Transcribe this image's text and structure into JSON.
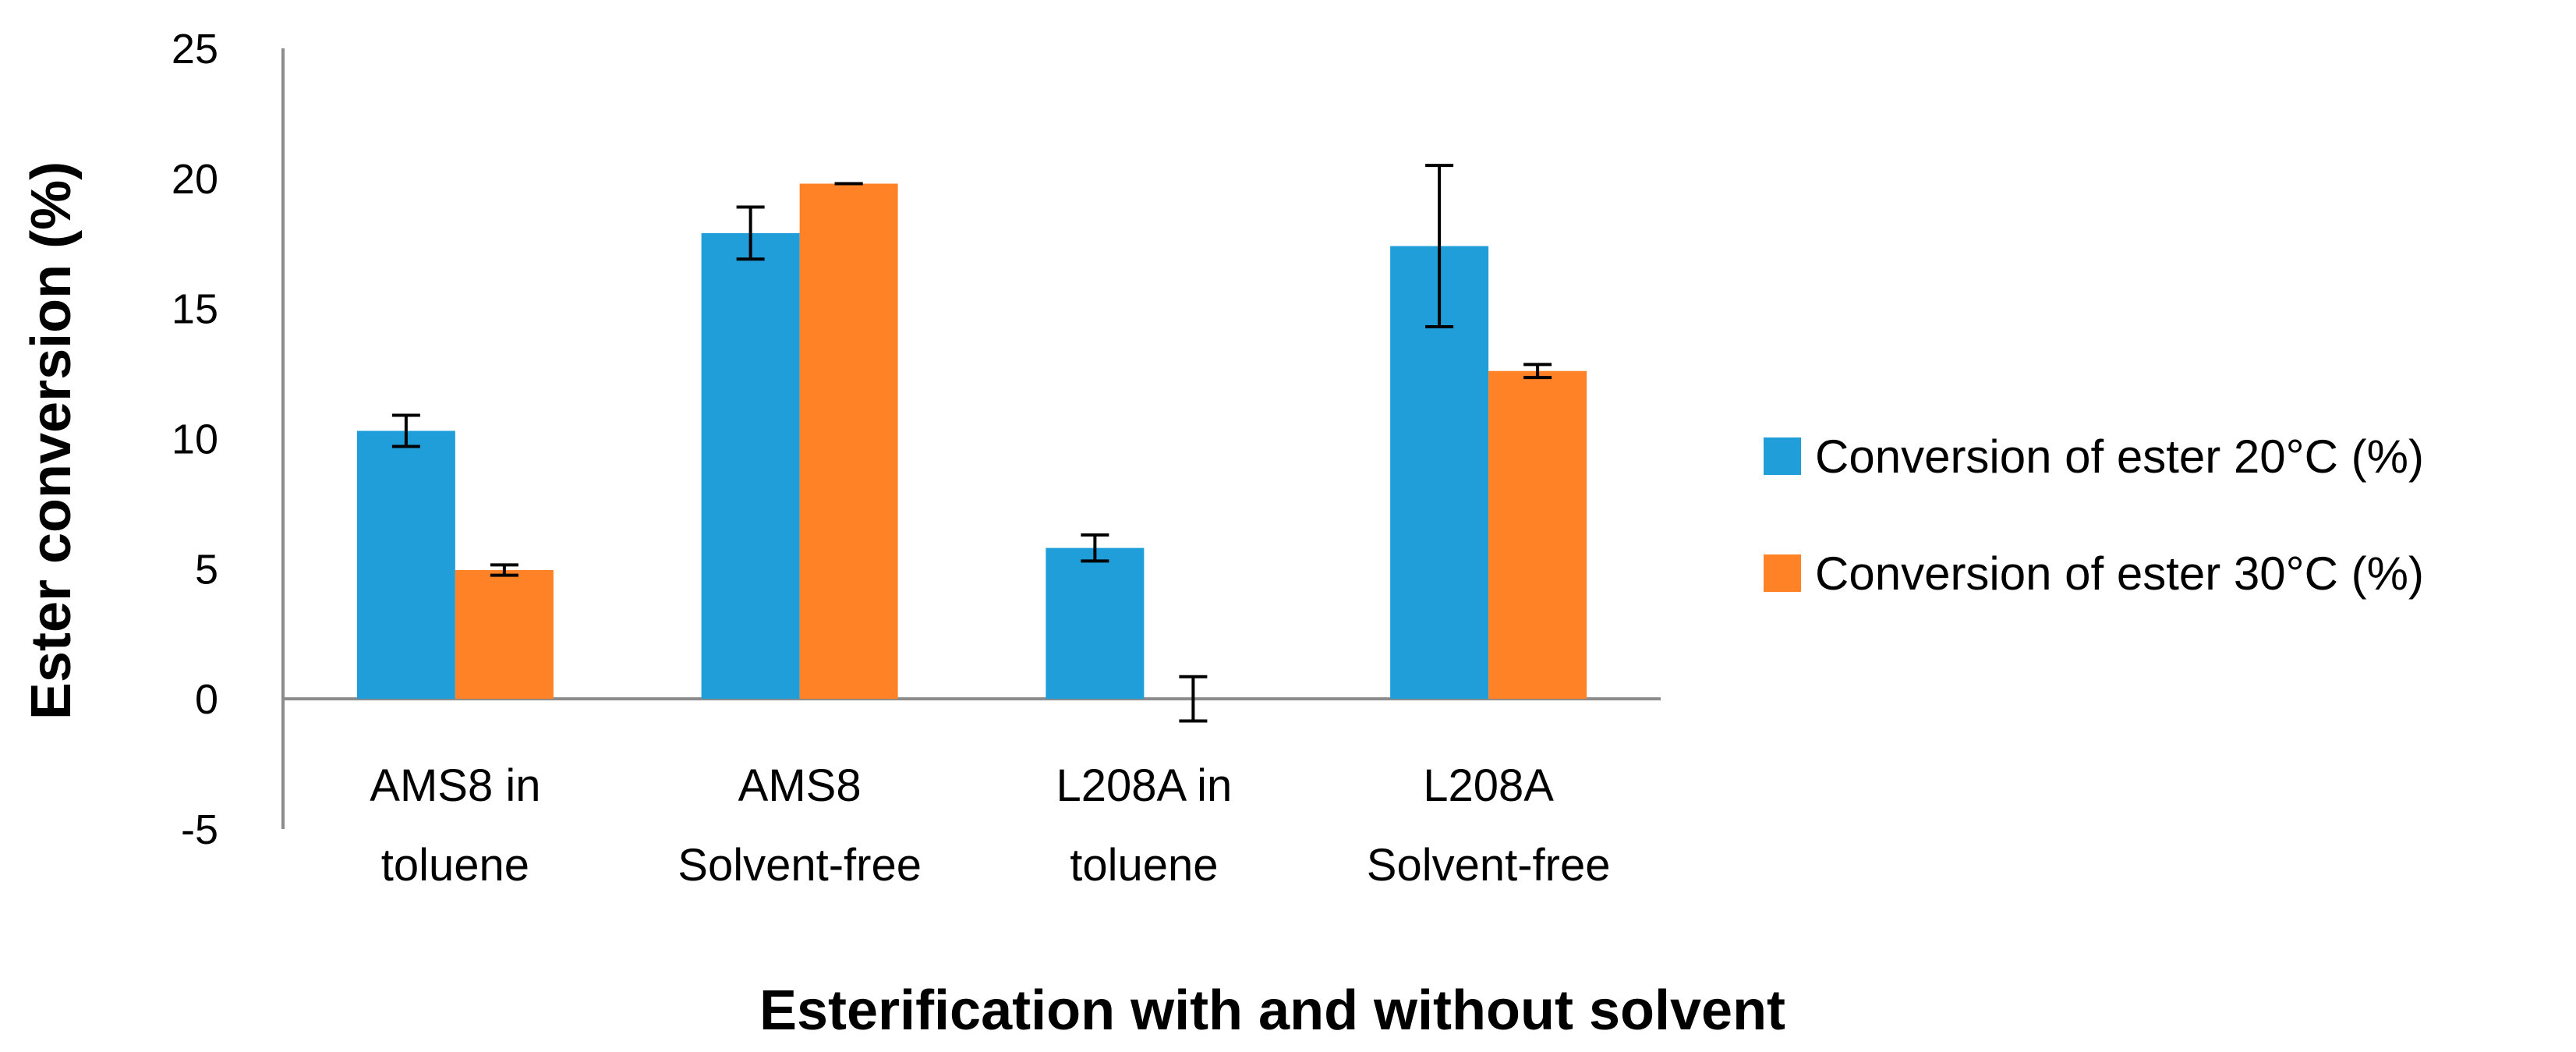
{
  "chart_data": {
    "type": "bar",
    "title": "",
    "xlabel": "Esterification with and without solvent",
    "ylabel": "Ester conversion (%)",
    "ylim": [
      -5,
      25
    ],
    "yticks": [
      -5,
      0,
      5,
      10,
      15,
      20,
      25
    ],
    "grid": false,
    "legend_position": "right",
    "categories": [
      [
        "AMS8 in",
        "toluene"
      ],
      [
        "AMS8",
        "Solvent-free"
      ],
      [
        "L208A in",
        "toluene"
      ],
      [
        "L208A",
        "Solvent-free"
      ]
    ],
    "series": [
      {
        "name": "Conversion of ester 20°C (%)",
        "color": "#1f9ed9",
        "values": [
          10.3,
          17.9,
          5.8,
          17.4
        ],
        "errors": [
          0.6,
          1.0,
          0.5,
          3.1
        ]
      },
      {
        "name": "Conversion of ester 30°C (%)",
        "color": "#ff8226",
        "values": [
          4.95,
          19.8,
          0.0,
          12.6
        ],
        "errors": [
          0.2,
          0.0,
          0.85,
          0.25
        ]
      }
    ]
  }
}
